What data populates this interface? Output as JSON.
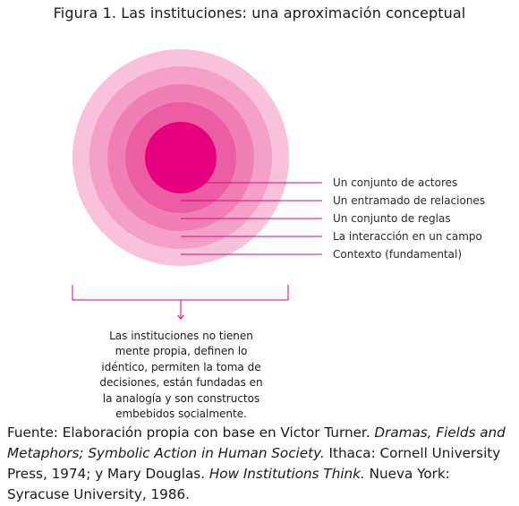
{
  "title": "Figura 1. Las instituciones: una aproximación conceptual",
  "layers": [
    {
      "label": "Un conjunto de actores",
      "color": "#e6007e"
    },
    {
      "label": "Un entramado de relaciones",
      "color": "#ec5ea3"
    },
    {
      "label": "Un conjunto de reglas",
      "color": "#f07fb3"
    },
    {
      "label": "La interacción en un campo",
      "color": "#f5a0c7"
    },
    {
      "label": "Contexto (fundamental)",
      "color": "#f8c3da"
    }
  ],
  "line_color": "#e3007d",
  "caption": "Las instituciones no tienen mente propia, definen lo idéntico, permiten la toma de decisiones, están fundadas en la analogía y son constructos embebidos socialmente.",
  "source": {
    "part1": "Fuente: Elaboración propia con base en Victor Turner. ",
    "book1": "Dramas, Fields and Metaphors; Symbolic Action in Human Society.",
    "part2": " Ithaca: Cornell University Press, 1974; y Mary Douglas. ",
    "book2": "How Institutions Think.",
    "part3": " Nueva York: Syracuse University, 1986."
  }
}
